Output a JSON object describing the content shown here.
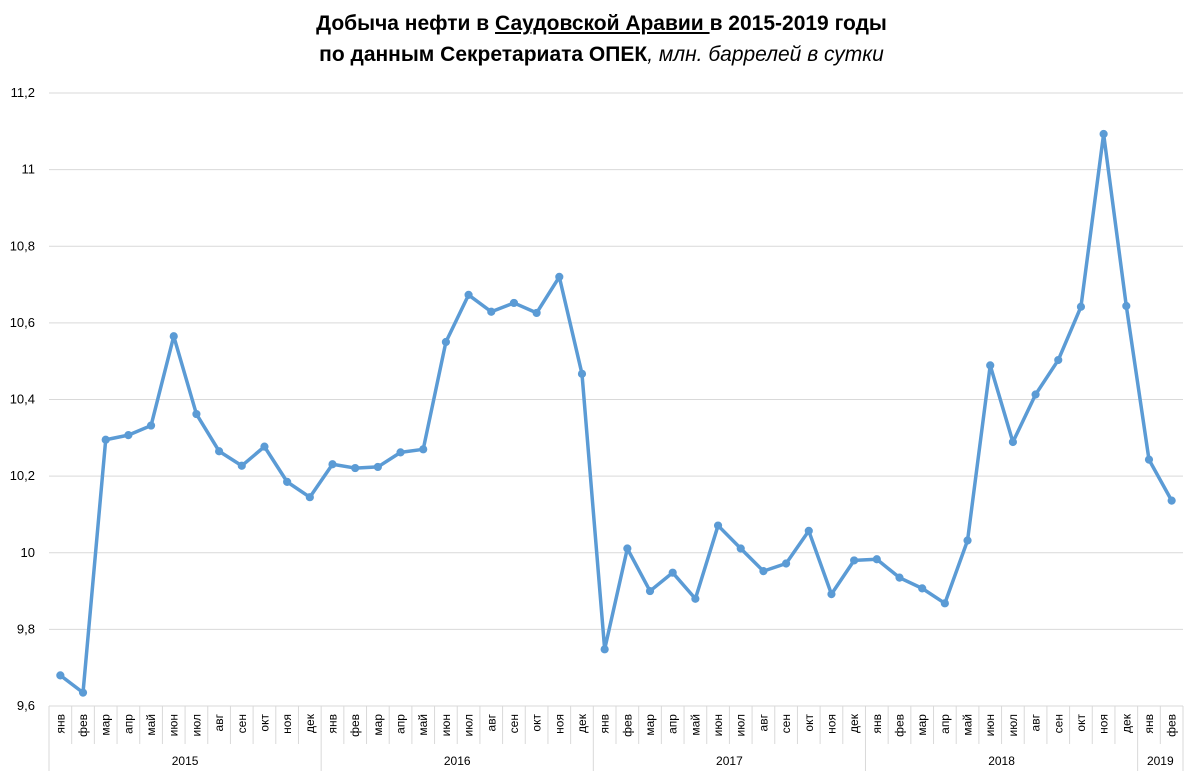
{
  "title": {
    "line1_part1": "Добыча нефти в ",
    "line1_underlined": "Саудовской Аравии ",
    "line1_part2": "в 2015-2019 годы",
    "line2_bold": "по данным Секретариата ОПЕК",
    "line2_italic": ", млн. баррелей в сутки"
  },
  "chart_data": {
    "type": "line",
    "title": "Добыча нефти в Саудовской Аравии в 2015-2019 годы по данным Секретариата ОПЕК, млн. баррелей в сутки",
    "xlabel": "",
    "ylabel": "",
    "ylim": [
      9.6,
      11.2
    ],
    "yticks": [
      "9,6",
      "9,8",
      "10",
      "10,2",
      "10,4",
      "10,6",
      "10,8",
      "11",
      "11,2"
    ],
    "ytick_values": [
      9.6,
      9.8,
      10.0,
      10.2,
      10.4,
      10.6,
      10.8,
      11.0,
      11.2
    ],
    "grid": true,
    "legend": "none",
    "color": "#5b9bd5",
    "years": [
      {
        "label": "2015",
        "count": 12
      },
      {
        "label": "2016",
        "count": 12
      },
      {
        "label": "2017",
        "count": 12
      },
      {
        "label": "2018",
        "count": 12
      },
      {
        "label": "2019",
        "count": 2
      }
    ],
    "categories": [
      "янв",
      "фев",
      "мар",
      "апр",
      "май",
      "июн",
      "июл",
      "авг",
      "сен",
      "окт",
      "ноя",
      "дек",
      "янв",
      "фев",
      "мар",
      "апр",
      "май",
      "июн",
      "июл",
      "авг",
      "сен",
      "окт",
      "ноя",
      "дек",
      "янв",
      "фев",
      "мар",
      "апр",
      "май",
      "июн",
      "июл",
      "авг",
      "сен",
      "окт",
      "ноя",
      "дек",
      "янв",
      "фев",
      "мар",
      "апр",
      "май",
      "июн",
      "июл",
      "авг",
      "сен",
      "окт",
      "ноя",
      "дек",
      "янв",
      "фев"
    ],
    "series": [
      {
        "values": [
          9.68,
          9.635,
          10.295,
          10.307,
          10.332,
          10.565,
          10.362,
          10.265,
          10.227,
          10.277,
          10.185,
          10.145,
          10.231,
          10.221,
          10.224,
          10.262,
          10.27,
          10.55,
          10.673,
          10.629,
          10.652,
          10.626,
          10.72,
          10.467,
          9.748,
          10.011,
          9.9,
          9.948,
          9.88,
          10.071,
          10.011,
          9.952,
          9.972,
          10.057,
          9.892,
          9.98,
          9.983,
          9.935,
          9.907,
          9.868,
          10.032,
          10.489,
          10.289,
          10.413,
          10.503,
          10.642,
          11.093,
          10.644,
          10.243,
          10.136
        ]
      }
    ]
  }
}
